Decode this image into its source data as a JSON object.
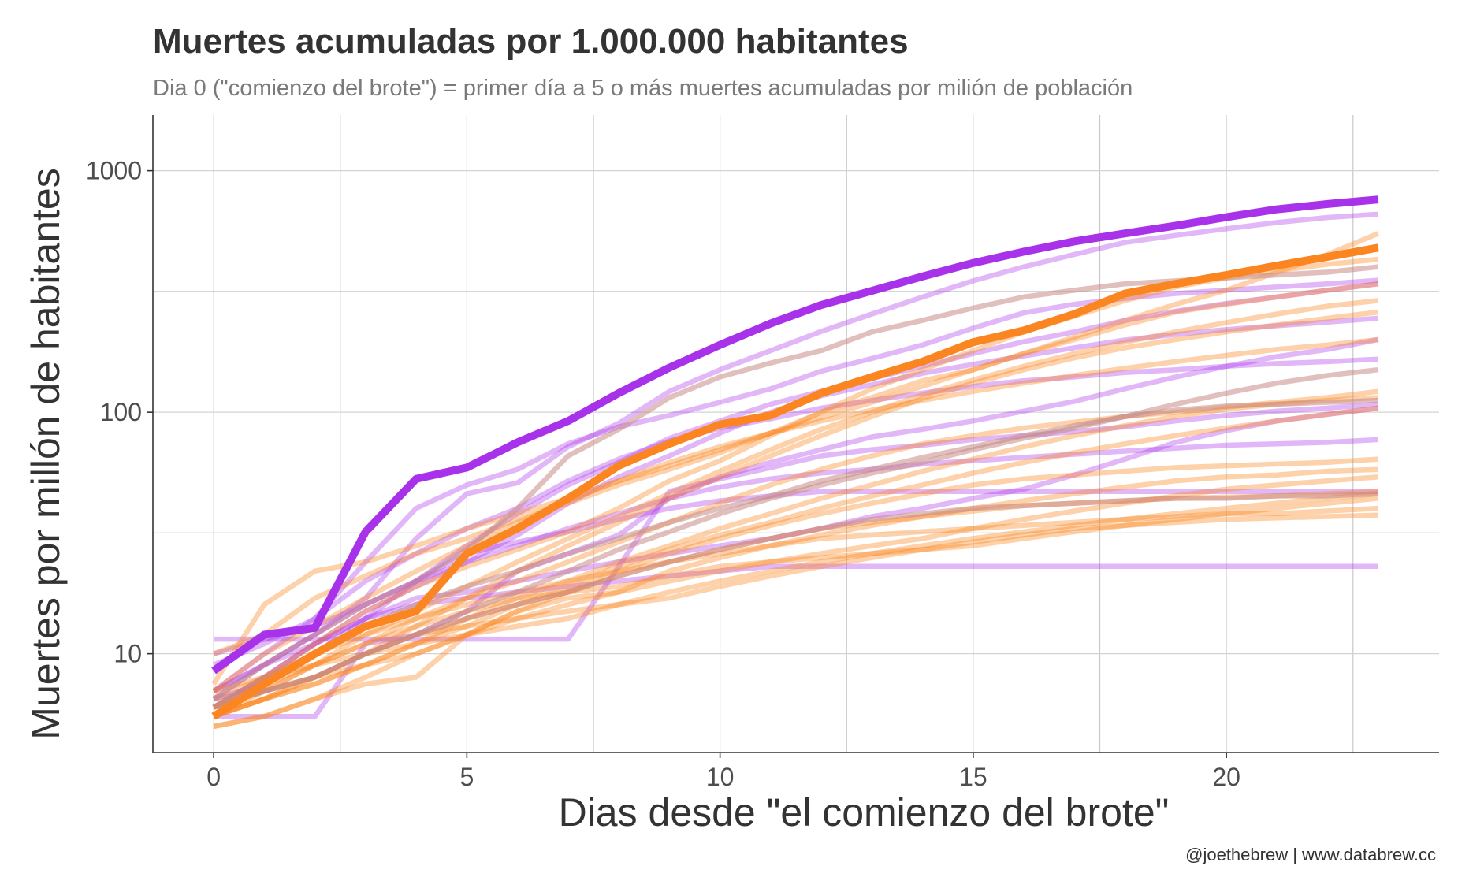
{
  "title": "Muertes acumuladas por 1.000.000 habitantes",
  "subtitle": "Dia 0 (\"comienzo del brote\") = primer día a 5 o más muertes acumuladas por milión de población",
  "caption": "@joethebrew | www.databrew.cc",
  "chart_data": {
    "type": "line",
    "title": "Muertes acumuladas por 1.000.000 habitantes",
    "subtitle": "Dia 0 (\"comienzo del brote\") = primer día a 5 o más muertes acumuladas por milión de población",
    "xlabel": "Dias desde \"el comienzo del brote\"",
    "ylabel": "Muertes por millón de habitantes",
    "xlim": [
      -1.2,
      24.2
    ],
    "ylim": [
      3.9,
      1700
    ],
    "y_scale": "log10",
    "x_ticks": [
      0,
      5,
      10,
      15,
      20
    ],
    "x_tick_labels": [
      "0",
      "5",
      "10",
      "15",
      "20"
    ],
    "y_ticks": [
      10,
      100,
      1000
    ],
    "y_tick_labels": [
      "10",
      "100",
      "1000"
    ],
    "grid": true,
    "legend": "none",
    "colors": {
      "purple": "#a832ea",
      "orange": "#fb8520"
    },
    "highlight_series": [
      {
        "color": "purple",
        "values": [
          8.5,
          12,
          12.8,
          32,
          53,
          59,
          75,
          92,
          120,
          153,
          190,
          233,
          278,
          318,
          365,
          415,
          462,
          510,
          550,
          592,
          642,
          692,
          728,
          760
        ]
      },
      {
        "color": "orange",
        "values": [
          5.5,
          7.5,
          10,
          13,
          15,
          26,
          33,
          44,
          60,
          74,
          89,
          97,
          120,
          140,
          162,
          195,
          218,
          255,
          310,
          340,
          370,
          405,
          440,
          480
        ]
      }
    ],
    "background_series": [
      {
        "color": "purple",
        "values": [
          11.5,
          11.5,
          11.5,
          11.5,
          11.5,
          11.5,
          11.5,
          11.5,
          23,
          47,
          53,
          59,
          66,
          70,
          73,
          77,
          80,
          83,
          87,
          92,
          97,
          101,
          104,
          108
        ]
      },
      {
        "color": "purple",
        "values": [
          5.5,
          5.5,
          5.5,
          11,
          12,
          15,
          22,
          26,
          31,
          44,
          54,
          62,
          70,
          79,
          85,
          92,
          101,
          111,
          125,
          140,
          155,
          170,
          182,
          200
        ]
      },
      {
        "color": "purple",
        "values": [
          6,
          8,
          11,
          15,
          19,
          24,
          31,
          42,
          54,
          66,
          82,
          100,
          117,
          130,
          145,
          158,
          171,
          185,
          199,
          210,
          220,
          228,
          236,
          245
        ]
      },
      {
        "color": "purple",
        "values": [
          7,
          10,
          14,
          20,
          26,
          33,
          40,
          52,
          64,
          76,
          86,
          94,
          104,
          112,
          120,
          128,
          135,
          140,
          146,
          150,
          155,
          159,
          162,
          166
        ]
      },
      {
        "color": "purple",
        "values": [
          6.5,
          9,
          12,
          16,
          20,
          24,
          28,
          33,
          38,
          44,
          49,
          53,
          56,
          58,
          61,
          63,
          65,
          67,
          69,
          71,
          73,
          74,
          75,
          77
        ]
      },
      {
        "color": "purple",
        "values": [
          9,
          11,
          14,
          24,
          40,
          50,
          58,
          74,
          87,
          97,
          110,
          125,
          148,
          167,
          190,
          223,
          258,
          280,
          296,
          310,
          320,
          330,
          340,
          352
        ]
      },
      {
        "color": "purple",
        "values": [
          6,
          8,
          11,
          14,
          17,
          18,
          20,
          22,
          24,
          26,
          28,
          30,
          33,
          37,
          40,
          44,
          48,
          55,
          64,
          75,
          84,
          92,
          98,
          104
        ]
      },
      {
        "color": "purple",
        "values": [
          7,
          9,
          12,
          17,
          30,
          46,
          51,
          72,
          90,
          122,
          150,
          180,
          216,
          255,
          300,
          350,
          400,
          450,
          505,
          540,
          575,
          610,
          640,
          660
        ]
      },
      {
        "color": "purple",
        "values": [
          7,
          9,
          11,
          14,
          16,
          17,
          18,
          19,
          20,
          21,
          22,
          23,
          23,
          23,
          23,
          23,
          23,
          23,
          23,
          23,
          23,
          23,
          23,
          23
        ]
      },
      {
        "color": "purple",
        "values": [
          10,
          11.5,
          13,
          16,
          20,
          26,
          29,
          32,
          36,
          40,
          43,
          45,
          47,
          47,
          47,
          47,
          47,
          47,
          47,
          47,
          47,
          47,
          47,
          47
        ]
      },
      {
        "color": "purple",
        "values": [
          6.5,
          7.5,
          10,
          14,
          20,
          28,
          38,
          50,
          62,
          78,
          92,
          108,
          122,
          138,
          155,
          175,
          196,
          215,
          240,
          262,
          282,
          300,
          320,
          340
        ]
      },
      {
        "color": "orange",
        "values": [
          7.5,
          16,
          22,
          24,
          28,
          33,
          38,
          44,
          52,
          60,
          70,
          82,
          95,
          110,
          128,
          150,
          175,
          205,
          240,
          280,
          320,
          380,
          450,
          550
        ]
      },
      {
        "color": "orange",
        "values": [
          6,
          8,
          11,
          15,
          19,
          23,
          27,
          32,
          40,
          52,
          63,
          80,
          100,
          115,
          135,
          150,
          175,
          200,
          230,
          260,
          280,
          300,
          320,
          340
        ]
      },
      {
        "color": "orange",
        "values": [
          5.5,
          7,
          9,
          12,
          15,
          19,
          24,
          30,
          37,
          46,
          57,
          70,
          85,
          100,
          118,
          136,
          155,
          175,
          195,
          215,
          235,
          255,
          275,
          290
        ]
      },
      {
        "color": "orange",
        "values": [
          6,
          7,
          9,
          11,
          14,
          17,
          20,
          24,
          29,
          35,
          42,
          50,
          58,
          66,
          74,
          80,
          86,
          91,
          96,
          100,
          105,
          110,
          115,
          122
        ]
      },
      {
        "color": "orange",
        "values": [
          5,
          5.5,
          6.5,
          8,
          10,
          12,
          15,
          18,
          22,
          26,
          30,
          34,
          38,
          42,
          46,
          50,
          53,
          55,
          57,
          59,
          60,
          61,
          62,
          64
        ]
      },
      {
        "color": "orange",
        "values": [
          5.5,
          6.5,
          8,
          10,
          12,
          14,
          16,
          18,
          21,
          24,
          27,
          30,
          33,
          35,
          37,
          39,
          41,
          42,
          43,
          44,
          44.5,
          45,
          46,
          47
        ]
      },
      {
        "color": "orange",
        "values": [
          5,
          5.5,
          6.5,
          7.5,
          8,
          12,
          15,
          17,
          18,
          22,
          25,
          28,
          31,
          34,
          37,
          40,
          43,
          46,
          49,
          52,
          54,
          55,
          57,
          58
        ]
      },
      {
        "color": "orange",
        "values": [
          6.5,
          8,
          10,
          12,
          14,
          16,
          18,
          20,
          22,
          24,
          26,
          28,
          30,
          31,
          32,
          33,
          34,
          35,
          36,
          37,
          38,
          38,
          39,
          40
        ]
      },
      {
        "color": "orange",
        "values": [
          5.5,
          6.5,
          7.5,
          9,
          11,
          14,
          17,
          20,
          24,
          28,
          33,
          38,
          44,
          50,
          57,
          64,
          72,
          80,
          88,
          96,
          103,
          108,
          112,
          115
        ]
      },
      {
        "color": "orange",
        "values": [
          6,
          7,
          8,
          10,
          12,
          13,
          14,
          15,
          16,
          17,
          19,
          21,
          23,
          25,
          27,
          29,
          31,
          33,
          34,
          35,
          36,
          36.5,
          37,
          37.5
        ]
      },
      {
        "color": "orange",
        "values": [
          5.5,
          6.5,
          8,
          10,
          13,
          17,
          22,
          28,
          35,
          44,
          54,
          66,
          80,
          96,
          114,
          132,
          150,
          168,
          185,
          200,
          215,
          230,
          245,
          260
        ]
      },
      {
        "color": "orange",
        "values": [
          6,
          7.5,
          9,
          11,
          13,
          15,
          17,
          18,
          19,
          21,
          23,
          24,
          25,
          26,
          27,
          28,
          30,
          32,
          34,
          36,
          38,
          40,
          42,
          44
        ]
      },
      {
        "color": "orange",
        "values": [
          7,
          10,
          13,
          17,
          22,
          28,
          35,
          43,
          52,
          62,
          72,
          82,
          92,
          102,
          112,
          122,
          132,
          142,
          152,
          162,
          172,
          182,
          190,
          200
        ]
      },
      {
        "color": "orange",
        "values": [
          10,
          12,
          17,
          21,
          26,
          30,
          36,
          42,
          50,
          58,
          68,
          82,
          100,
          125,
          150,
          180,
          215,
          250,
          290,
          330,
          360,
          385,
          410,
          430
        ]
      },
      {
        "color": "orange",
        "values": [
          5.5,
          6.5,
          7.5,
          9,
          11,
          13,
          16,
          19,
          23,
          27,
          31,
          35,
          40,
          45,
          50,
          56,
          62,
          68,
          74,
          80,
          86,
          92,
          98,
          104
        ]
      },
      {
        "color": "orange",
        "values": [
          6,
          7,
          8,
          9,
          10,
          12,
          14,
          16,
          18,
          20,
          22,
          24,
          26,
          28,
          30,
          33,
          36,
          39,
          42,
          45,
          48,
          50,
          52,
          54
        ]
      },
      {
        "color": "orange",
        "values": [
          7,
          8,
          9,
          10,
          11,
          12,
          13,
          14,
          16,
          18,
          20,
          22,
          24,
          26,
          28,
          30,
          32,
          34,
          36,
          38,
          40,
          42,
          44,
          46
        ]
      },
      {
        "color": "brown",
        "values": [
          6.5,
          9,
          12,
          16,
          20,
          27,
          40,
          66,
          85,
          115,
          140,
          160,
          180,
          215,
          240,
          270,
          300,
          320,
          340,
          350,
          360,
          370,
          380,
          400
        ]
      },
      {
        "color": "brown",
        "values": [
          6,
          8,
          10,
          13,
          16,
          19,
          22,
          26,
          30,
          35,
          40,
          45,
          52,
          58,
          65,
          72,
          80,
          88,
          96,
          102,
          106,
          108,
          110,
          112
        ]
      },
      {
        "color": "brown",
        "values": [
          6.5,
          7,
          8,
          10,
          12,
          15,
          18,
          22,
          27,
          32,
          38,
          44,
          50,
          56,
          62,
          70,
          78,
          86,
          96,
          108,
          120,
          132,
          142,
          150
        ]
      },
      {
        "color": "brown",
        "values": [
          6,
          7,
          8,
          10,
          12,
          14,
          16,
          18,
          21,
          24,
          27,
          30,
          33,
          36,
          38,
          40,
          41,
          42,
          43,
          44,
          44,
          45,
          45,
          46
        ]
      }
    ]
  }
}
